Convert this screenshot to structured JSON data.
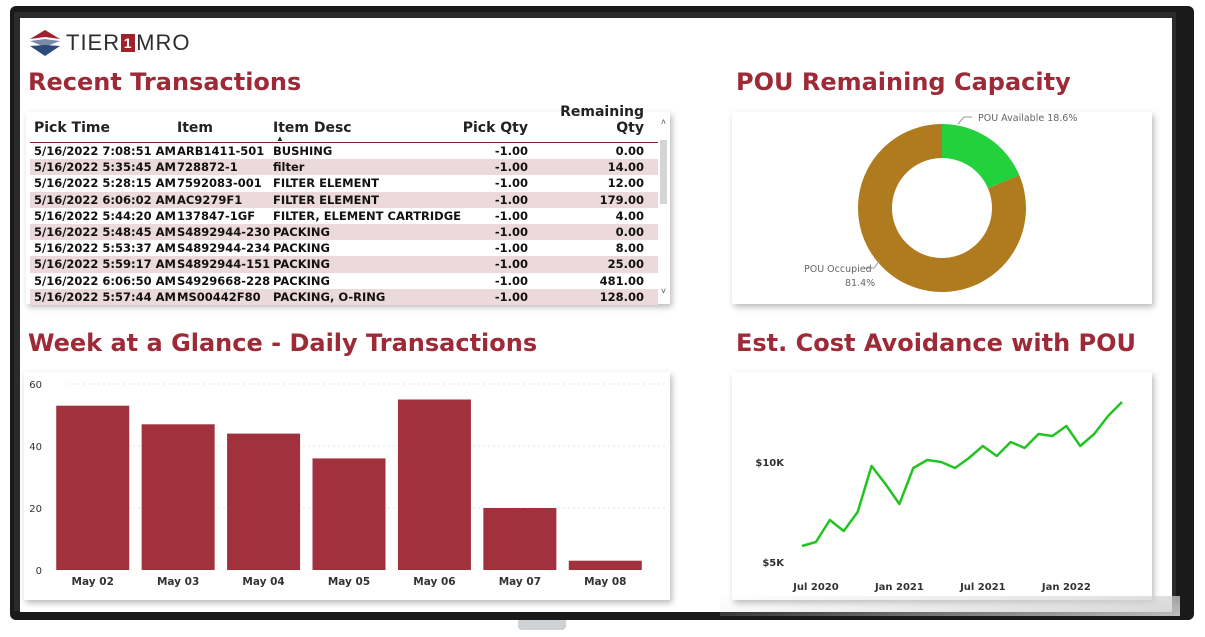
{
  "logo": {
    "prefix": "TIER",
    "one": "1",
    "suffix": "MRO"
  },
  "titles": {
    "recent": "Recent Transactions",
    "pou": "POU Remaining Capacity",
    "week": "Week at a Glance - Daily Transactions",
    "cost": "Est. Cost Avoidance with POU"
  },
  "table": {
    "columns": [
      "Pick Time",
      "Item",
      "Item Desc",
      "Pick Qty",
      "Remaining Qty"
    ],
    "rows": [
      [
        "5/16/2022 7:08:51 AM",
        "ARB1411-501",
        "BUSHING",
        "-1.00",
        "0.00"
      ],
      [
        "5/16/2022 5:35:45 AM",
        "728872-1",
        "filter",
        "-1.00",
        "14.00"
      ],
      [
        "5/16/2022 5:28:15 AM",
        "7592083-001",
        "FILTER ELEMENT",
        "-1.00",
        "12.00"
      ],
      [
        "5/16/2022 6:06:02 AM",
        "AC9279F1",
        "FILTER ELEMENT",
        "-1.00",
        "179.00"
      ],
      [
        "5/16/2022 5:44:20 AM",
        "137847-1GF",
        "FILTER, ELEMENT CARTRIDGE",
        "-1.00",
        "4.00"
      ],
      [
        "5/16/2022 5:48:45 AM",
        "S4892944-230",
        "PACKING",
        "-1.00",
        "0.00"
      ],
      [
        "5/16/2022 5:53:37 AM",
        "S4892944-234",
        "PACKING",
        "-1.00",
        "8.00"
      ],
      [
        "5/16/2022 5:59:17 AM",
        "S4892944-151",
        "PACKING",
        "-1.00",
        "25.00"
      ],
      [
        "5/16/2022 6:06:50 AM",
        "S4929668-228",
        "PACKING",
        "-1.00",
        "481.00"
      ],
      [
        "5/16/2022 5:57:44 AM",
        "MS00442F80",
        "PACKING, O-RING",
        "-1.00",
        "128.00"
      ]
    ],
    "scroll_up": "˄",
    "scroll_down": "˅",
    "sort_caret": "▲"
  },
  "colors": {
    "accent": "#9e2a38",
    "bar": "#a0313d",
    "line": "#22c322",
    "donut_available": "#22d13b",
    "donut_occupied": "#b07a1f"
  },
  "chart_data": [
    {
      "type": "pie",
      "title": "POU Remaining Capacity",
      "labels": [
        "POU Available",
        "POU Occupied"
      ],
      "values": [
        18.6,
        81.4
      ],
      "value_labels": [
        "18.6%",
        "81.4%"
      ],
      "donut": true
    },
    {
      "type": "bar",
      "title": "Week at a Glance - Daily Transactions",
      "categories": [
        "May 02",
        "May 03",
        "May 04",
        "May 05",
        "May 06",
        "May 07",
        "May 08"
      ],
      "values": [
        53,
        47,
        44,
        36,
        55,
        20,
        3
      ],
      "ylim": [
        0,
        60
      ],
      "yticks": [
        "0",
        "20",
        "40",
        "60"
      ],
      "grid": true
    },
    {
      "type": "line",
      "title": "Est. Cost Avoidance with POU",
      "x": [
        "2020-06",
        "2020-07",
        "2020-08",
        "2020-09",
        "2020-10",
        "2020-11",
        "2020-12",
        "2021-01",
        "2021-02",
        "2021-03",
        "2021-04",
        "2021-05",
        "2021-06",
        "2021-07",
        "2021-08",
        "2021-09",
        "2021-10",
        "2021-11",
        "2021-12",
        "2022-01",
        "2022-02",
        "2022-03",
        "2022-04"
      ],
      "y": [
        5800,
        6000,
        7100,
        6550,
        7500,
        9800,
        8900,
        7900,
        9700,
        10100,
        10000,
        9700,
        10200,
        10800,
        10300,
        11000,
        10700,
        11400,
        11300,
        11800,
        10800,
        11400,
        12300
      ],
      "y_last": 13000,
      "ylim": [
        5000,
        13500
      ],
      "yticks": [
        "$5K",
        "$10K"
      ],
      "xticks": [
        "Jul 2020",
        "Jan 2021",
        "Jul 2021",
        "Jan 2022"
      ],
      "grid": false
    }
  ]
}
